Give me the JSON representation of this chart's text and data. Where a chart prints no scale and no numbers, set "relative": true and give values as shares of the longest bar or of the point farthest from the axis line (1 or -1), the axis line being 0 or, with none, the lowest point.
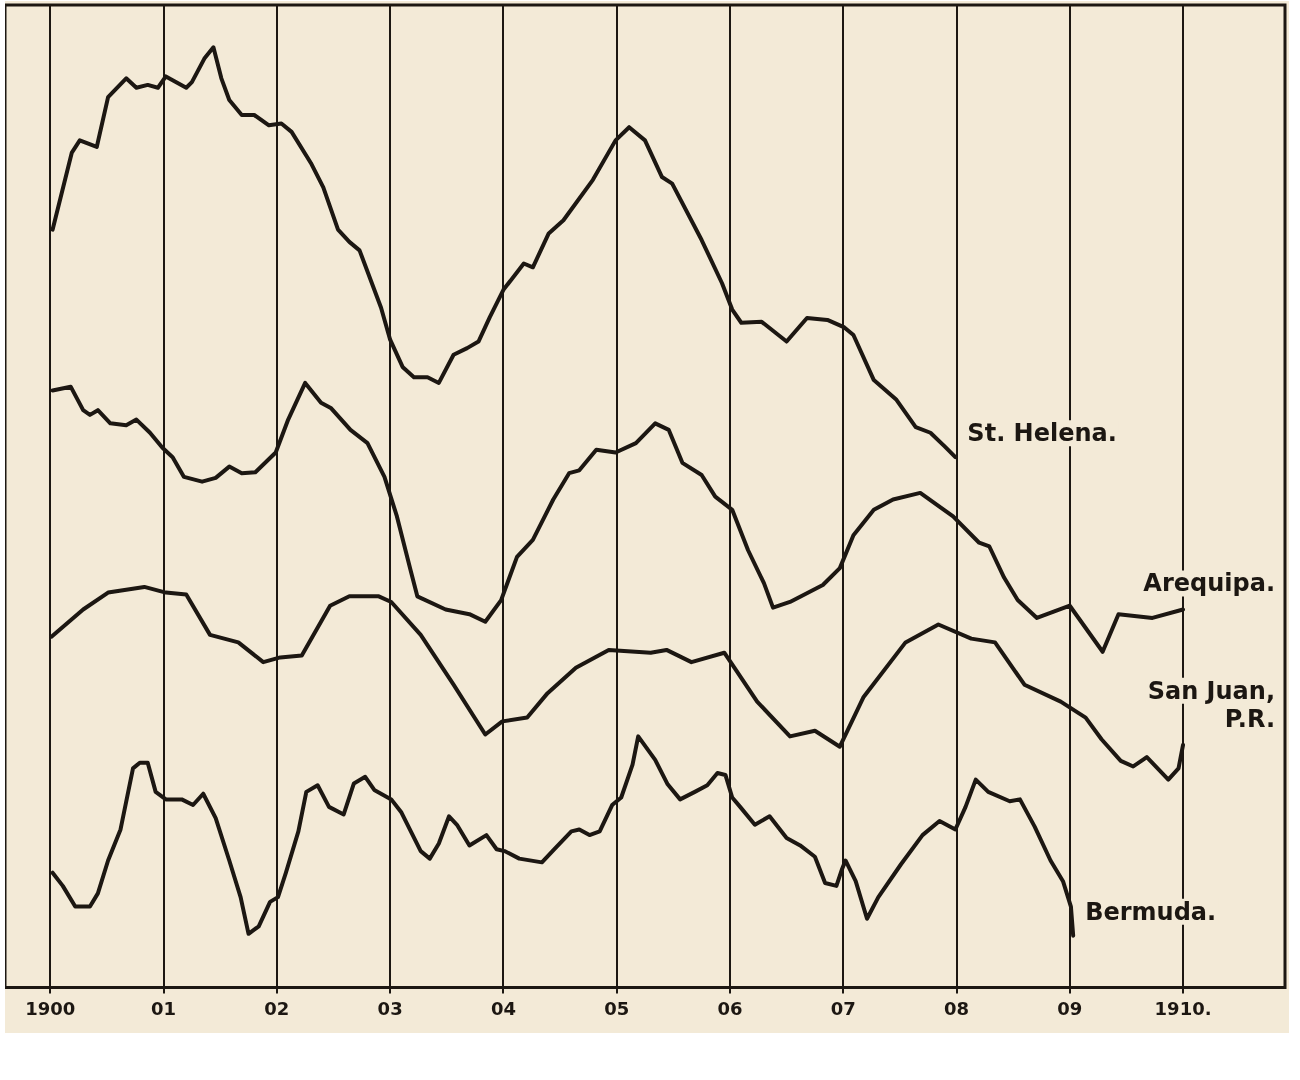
{
  "chart_data": {
    "type": "line",
    "relative": true,
    "xlim": [
      1899.6,
      1910.9
    ],
    "xticks": [
      {
        "value": 1900,
        "label": "1900"
      },
      {
        "value": 1901,
        "label": "01"
      },
      {
        "value": 1902,
        "label": "02"
      },
      {
        "value": 1903,
        "label": "03"
      },
      {
        "value": 1904,
        "label": "04"
      },
      {
        "value": 1905,
        "label": "05"
      },
      {
        "value": 1906,
        "label": "06"
      },
      {
        "value": 1907,
        "label": "07"
      },
      {
        "value": 1908,
        "label": "08"
      },
      {
        "value": 1909,
        "label": "09"
      },
      {
        "value": 1910,
        "label": "1910."
      }
    ],
    "grid": "x",
    "legend": false,
    "marker": "none",
    "series": [
      {
        "name": "St. Helena.",
        "color": "#1c1712",
        "x": [
          1900.02,
          1900.19,
          1900.26,
          1900.41,
          1900.51,
          1900.67,
          1900.76,
          1900.86,
          1900.95,
          1901.02,
          1901.2,
          1901.25,
          1901.36,
          1901.44,
          1901.51,
          1901.58,
          1901.69,
          1901.8,
          1901.93,
          1902.04,
          1902.13,
          1902.3,
          1902.41,
          1902.54,
          1902.64,
          1902.73,
          1902.92,
          1903.0,
          1903.11,
          1903.21,
          1903.33,
          1903.43,
          1903.56,
          1903.68,
          1903.78,
          1903.88,
          1904.0,
          1904.18,
          1904.26,
          1904.4,
          1904.53,
          1904.79,
          1904.99,
          1905.11,
          1905.25,
          1905.4,
          1905.49,
          1905.75,
          1905.93,
          1906.02,
          1906.1,
          1906.28,
          1906.5,
          1906.68,
          1906.86,
          1907.01,
          1907.09,
          1907.27,
          1907.47,
          1907.64,
          1907.77,
          1907.9,
          1907.99
        ],
        "values": [
          0.806,
          0.888,
          0.901,
          0.894,
          0.947,
          0.967,
          0.957,
          0.96,
          0.957,
          0.969,
          0.957,
          0.963,
          0.988,
          1,
          0.967,
          0.944,
          0.928,
          0.928,
          0.917,
          0.919,
          0.91,
          0.877,
          0.851,
          0.806,
          0.793,
          0.784,
          0.723,
          0.689,
          0.66,
          0.649,
          0.649,
          0.643,
          0.673,
          0.68,
          0.687,
          0.713,
          0.742,
          0.77,
          0.766,
          0.802,
          0.816,
          0.859,
          0.901,
          0.915,
          0.901,
          0.862,
          0.855,
          0.795,
          0.749,
          0.721,
          0.707,
          0.708,
          0.687,
          0.712,
          0.71,
          0.702,
          0.694,
          0.646,
          0.625,
          0.596,
          0.59,
          0.575,
          0.564
        ]
      },
      {
        "name": "Arequipa.",
        "color": "#1c1712",
        "x": [
          1900.02,
          1900.18,
          1900.29,
          1900.35,
          1900.42,
          1900.53,
          1900.67,
          1900.76,
          1900.88,
          1900.99,
          1901.08,
          1901.18,
          1901.34,
          1901.46,
          1901.58,
          1901.69,
          1901.81,
          1901.99,
          1902.1,
          1902.25,
          1902.39,
          1902.48,
          1902.65,
          1902.8,
          1902.95,
          1903.06,
          1903.18,
          1903.24,
          1903.49,
          1903.7,
          1903.84,
          1903.98,
          1904.12,
          1904.26,
          1904.44,
          1904.58,
          1904.67,
          1904.82,
          1904.99,
          1905.17,
          1905.34,
          1905.46,
          1905.58,
          1905.75,
          1905.87,
          1906.02,
          1906.16,
          1906.3,
          1906.38,
          1906.53,
          1906.82,
          1906.97,
          1907.09,
          1907.27,
          1907.44,
          1907.68,
          1907.97,
          1908.2,
          1908.29,
          1908.42,
          1908.54,
          1908.71,
          1909.0,
          1909.29,
          1909.43,
          1909.73,
          1910.0
        ],
        "values": [
          0.635,
          0.639,
          0.614,
          0.609,
          0.614,
          0.6,
          0.598,
          0.604,
          0.59,
          0.574,
          0.564,
          0.543,
          0.538,
          0.542,
          0.554,
          0.547,
          0.548,
          0.569,
          0.604,
          0.643,
          0.622,
          0.616,
          0.593,
          0.579,
          0.543,
          0.501,
          0.444,
          0.416,
          0.402,
          0.397,
          0.389,
          0.412,
          0.458,
          0.476,
          0.519,
          0.547,
          0.55,
          0.572,
          0.569,
          0.579,
          0.6,
          0.593,
          0.558,
          0.545,
          0.522,
          0.508,
          0.465,
          0.43,
          0.404,
          0.41,
          0.428,
          0.446,
          0.481,
          0.508,
          0.519,
          0.526,
          0.501,
          0.473,
          0.469,
          0.436,
          0.412,
          0.393,
          0.406,
          0.357,
          0.397,
          0.393,
          0.402
        ]
      },
      {
        "name": "San Juan, P.R.",
        "color": "#1c1712",
        "x": [
          1900.01,
          1900.29,
          1900.51,
          1900.83,
          1901.02,
          1901.2,
          1901.41,
          1901.66,
          1901.88,
          1902.03,
          1902.22,
          1902.47,
          1902.64,
          1902.9,
          1903.01,
          1903.27,
          1903.56,
          1903.84,
          1903.99,
          1904.21,
          1904.39,
          1904.64,
          1904.93,
          1905.3,
          1905.44,
          1905.66,
          1905.95,
          1906.24,
          1906.53,
          1906.75,
          1906.97,
          1907.18,
          1907.55,
          1907.84,
          1908.13,
          1908.34,
          1908.6,
          1908.92,
          1909.14,
          1909.28,
          1909.45,
          1909.56,
          1909.68,
          1909.87,
          1909.96,
          1910.0
        ],
        "values": [
          0.373,
          0.402,
          0.42,
          0.426,
          0.42,
          0.418,
          0.375,
          0.367,
          0.346,
          0.351,
          0.353,
          0.406,
          0.416,
          0.416,
          0.41,
          0.375,
          0.322,
          0.269,
          0.283,
          0.287,
          0.313,
          0.34,
          0.359,
          0.356,
          0.359,
          0.346,
          0.356,
          0.304,
          0.267,
          0.273,
          0.256,
          0.309,
          0.367,
          0.386,
          0.371,
          0.367,
          0.322,
          0.304,
          0.287,
          0.264,
          0.241,
          0.235,
          0.245,
          0.221,
          0.233,
          0.258
        ]
      },
      {
        "name": "Bermuda.",
        "color": "#1c1712",
        "x": [
          1900.02,
          1900.11,
          1900.22,
          1900.35,
          1900.42,
          1900.51,
          1900.62,
          1900.73,
          1900.79,
          1900.86,
          1900.93,
          1901.02,
          1901.16,
          1901.26,
          1901.35,
          1901.46,
          1901.58,
          1901.68,
          1901.75,
          1901.84,
          1901.94,
          1902.01,
          1902.08,
          1902.19,
          1902.26,
          1902.36,
          1902.46,
          1902.59,
          1902.68,
          1902.78,
          1902.86,
          1903.01,
          1903.1,
          1903.27,
          1903.35,
          1903.43,
          1903.52,
          1903.59,
          1903.7,
          1903.85,
          1903.94,
          1904.01,
          1904.14,
          1904.34,
          1904.45,
          1904.6,
          1904.67,
          1904.76,
          1904.85,
          1904.96,
          1905.04,
          1905.14,
          1905.19,
          1905.34,
          1905.45,
          1905.56,
          1905.69,
          1905.8,
          1905.89,
          1905.96,
          1906.02,
          1906.09,
          1906.22,
          1906.35,
          1906.5,
          1906.62,
          1906.75,
          1906.84,
          1906.94,
          1906.99,
          1907.02,
          1907.11,
          1907.21,
          1907.31,
          1907.51,
          1907.7,
          1907.85,
          1907.99,
          1908.08,
          1908.17,
          1908.28,
          1908.47,
          1908.56,
          1908.69,
          1908.83,
          1908.94,
          1909.01,
          1909.03
        ],
        "values": [
          0.122,
          0.108,
          0.086,
          0.086,
          0.1,
          0.135,
          0.168,
          0.233,
          0.239,
          0.239,
          0.208,
          0.2,
          0.2,
          0.194,
          0.206,
          0.18,
          0.135,
          0.096,
          0.057,
          0.065,
          0.091,
          0.096,
          0.122,
          0.166,
          0.208,
          0.215,
          0.192,
          0.184,
          0.217,
          0.224,
          0.21,
          0.2,
          0.186,
          0.145,
          0.137,
          0.153,
          0.182,
          0.173,
          0.151,
          0.162,
          0.147,
          0.145,
          0.137,
          0.133,
          0.147,
          0.166,
          0.168,
          0.162,
          0.166,
          0.194,
          0.202,
          0.237,
          0.267,
          0.242,
          0.216,
          0.2,
          0.208,
          0.215,
          0.228,
          0.226,
          0.202,
          0.192,
          0.173,
          0.182,
          0.159,
          0.151,
          0.139,
          0.111,
          0.108,
          0.126,
          0.135,
          0.113,
          0.073,
          0.096,
          0.131,
          0.162,
          0.177,
          0.168,
          0.192,
          0.221,
          0.208,
          0.198,
          0.2,
          0.171,
          0.135,
          0.113,
          0.086,
          0.055
        ]
      }
    ]
  }
}
